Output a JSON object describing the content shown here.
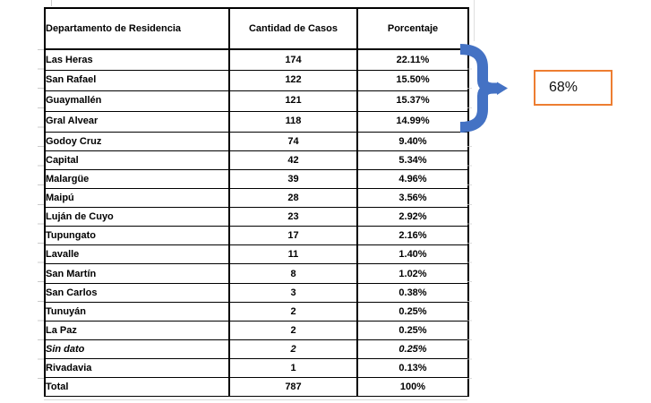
{
  "table": {
    "headers": [
      "Departamento de Residencia",
      "Cantidad de Casos",
      "Porcentaje"
    ],
    "rows": [
      {
        "departamento": "Las Heras",
        "casos": "174",
        "porcentaje": "22.11%"
      },
      {
        "departamento": "San Rafael",
        "casos": "122",
        "porcentaje": "15.50%"
      },
      {
        "departamento": "Guaymallén",
        "casos": "121",
        "porcentaje": "15.37%"
      },
      {
        "departamento": "Gral Alvear",
        "casos": "118",
        "porcentaje": "14.99%"
      },
      {
        "departamento": "Godoy Cruz",
        "casos": "74",
        "porcentaje": "9.40%"
      },
      {
        "departamento": "Capital",
        "casos": "42",
        "porcentaje": "5.34%"
      },
      {
        "departamento": "Malargüe",
        "casos": "39",
        "porcentaje": "4.96%"
      },
      {
        "departamento": "Maipú",
        "casos": "28",
        "porcentaje": "3.56%"
      },
      {
        "departamento": "Luján de Cuyo",
        "casos": "23",
        "porcentaje": "2.92%"
      },
      {
        "departamento": "Tupungato",
        "casos": "17",
        "porcentaje": "2.16%"
      },
      {
        "departamento": "Lavalle",
        "casos": "11",
        "porcentaje": "1.40%"
      },
      {
        "departamento": "San Martín",
        "casos": "8",
        "porcentaje": "1.02%"
      },
      {
        "departamento": "San Carlos",
        "casos": "3",
        "porcentaje": "0.38%"
      },
      {
        "departamento": "Tunuyán",
        "casos": "2",
        "porcentaje": "0.25%"
      },
      {
        "departamento": "La Paz",
        "casos": "2",
        "porcentaje": "0.25%"
      },
      {
        "departamento": "Sin dato",
        "casos": "2",
        "porcentaje": "0.25%",
        "italic": true
      },
      {
        "departamento": "Rivadavia",
        "casos": "1",
        "porcentaje": "0.13%"
      },
      {
        "departamento": "Total",
        "casos": "787",
        "porcentaje": "100%",
        "is_total": true
      }
    ]
  },
  "callout": {
    "label": "68%",
    "box_border_color": "#ED7D31",
    "bracket_color": "#4472C4",
    "bracket_rows": [
      "Las Heras",
      "San Rafael",
      "Guaymallén",
      "Gral Alvear"
    ]
  },
  "chart_data": {
    "type": "table",
    "title": "",
    "columns": [
      "Departamento de Residencia",
      "Cantidad de Casos",
      "Porcentaje"
    ],
    "categories": [
      "Las Heras",
      "San Rafael",
      "Guaymallén",
      "Gral Alvear",
      "Godoy Cruz",
      "Capital",
      "Malargüe",
      "Maipú",
      "Luján de Cuyo",
      "Tupungato",
      "Lavalle",
      "San Martín",
      "San Carlos",
      "Tunuyán",
      "La Paz",
      "Sin dato",
      "Rivadavia"
    ],
    "series": [
      {
        "name": "Cantidad de Casos",
        "values": [
          174,
          122,
          121,
          118,
          74,
          42,
          39,
          28,
          23,
          17,
          11,
          8,
          3,
          2,
          2,
          2,
          1
        ]
      },
      {
        "name": "Porcentaje",
        "values": [
          22.11,
          15.5,
          15.37,
          14.99,
          9.4,
          5.34,
          4.96,
          3.56,
          2.92,
          2.16,
          1.4,
          1.02,
          0.38,
          0.25,
          0.25,
          0.25,
          0.13
        ]
      }
    ],
    "total": {
      "casos": 787,
      "porcentaje": "100%"
    },
    "annotation": {
      "text": "68%",
      "applies_to": [
        "Las Heras",
        "San Rafael",
        "Guaymallén",
        "Gral Alvear"
      ]
    }
  }
}
